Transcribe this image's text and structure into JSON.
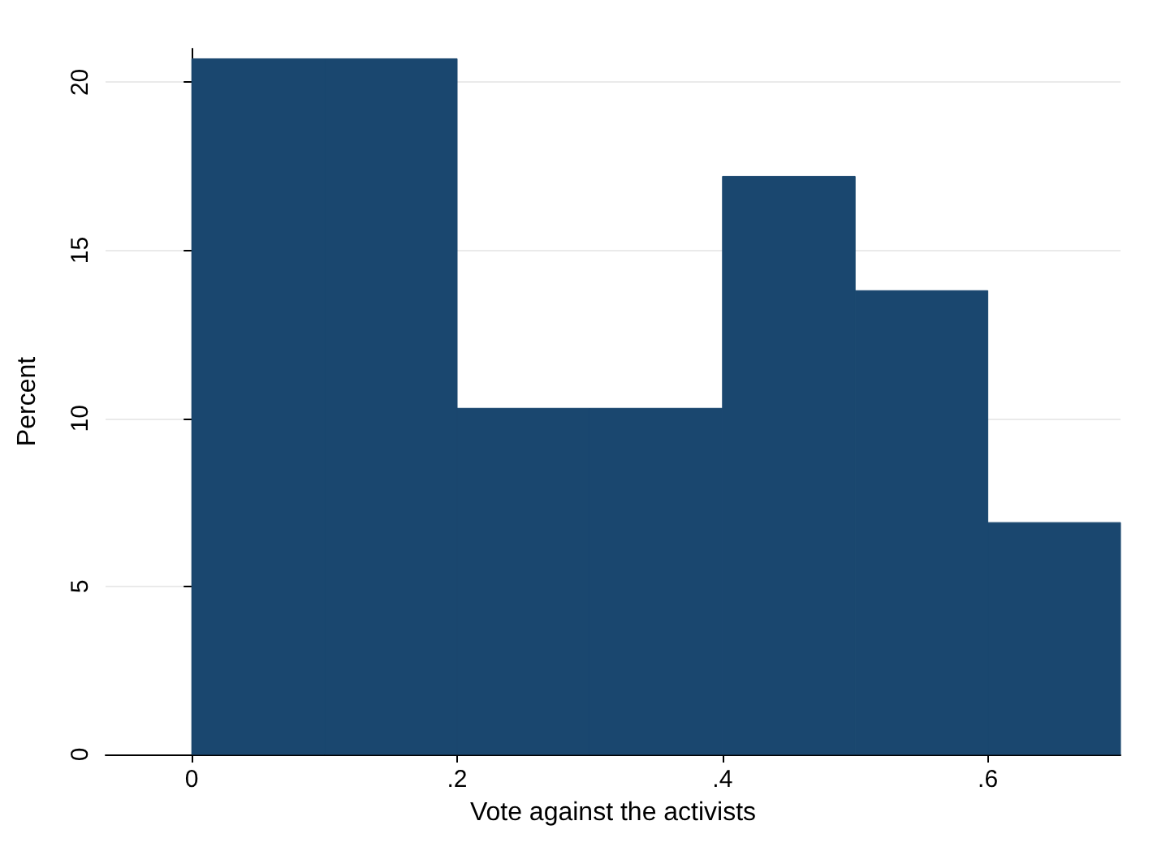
{
  "chart_data": {
    "type": "histogram",
    "xlabel": "Vote against the activists",
    "ylabel": "Percent",
    "bins": [
      0,
      0.1,
      0.2,
      0.3,
      0.4,
      0.5,
      0.6,
      0.7
    ],
    "values": [
      20.7,
      20.7,
      10.3,
      10.3,
      17.2,
      13.8,
      6.9
    ],
    "color": "#1a476f",
    "xlim": [
      -0.065,
      0.7
    ],
    "xticks": [
      {
        "value": 0,
        "label": "0"
      },
      {
        "value": 0.2,
        "label": ".2"
      },
      {
        "value": 0.4,
        "label": ".4"
      },
      {
        "value": 0.6,
        "label": ".6"
      }
    ],
    "ylim": [
      0,
      21
    ],
    "yticks": [
      0,
      5,
      10,
      15,
      20
    ],
    "grid": "y"
  }
}
